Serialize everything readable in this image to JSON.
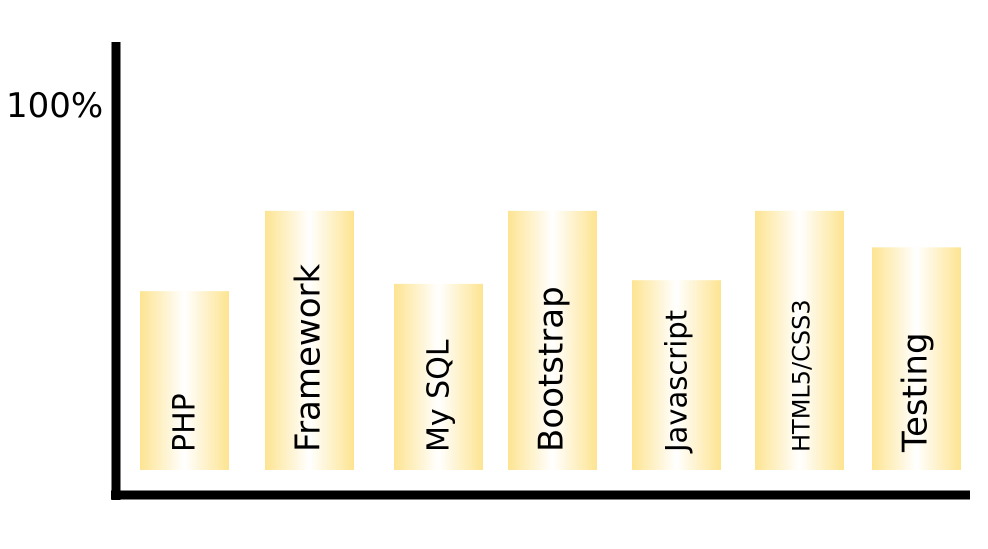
{
  "chart_data": {
    "type": "bar",
    "title": "",
    "xlabel": "",
    "ylabel": "",
    "y_tick_labels": [
      "100%"
    ],
    "ylim": [
      0,
      100
    ],
    "categories": [
      "PHP",
      "Framework",
      "My SQL",
      "Bootstrap",
      "Javascript",
      "HTML5/CSS3",
      "Testing"
    ],
    "values": [
      49,
      71,
      51,
      71,
      52,
      71,
      61
    ],
    "grid": false,
    "legend": "none",
    "colors": {
      "bar_edge": "#fde491",
      "bar_center": "#ffffff",
      "axis": "#000000",
      "text": "#000000"
    }
  }
}
